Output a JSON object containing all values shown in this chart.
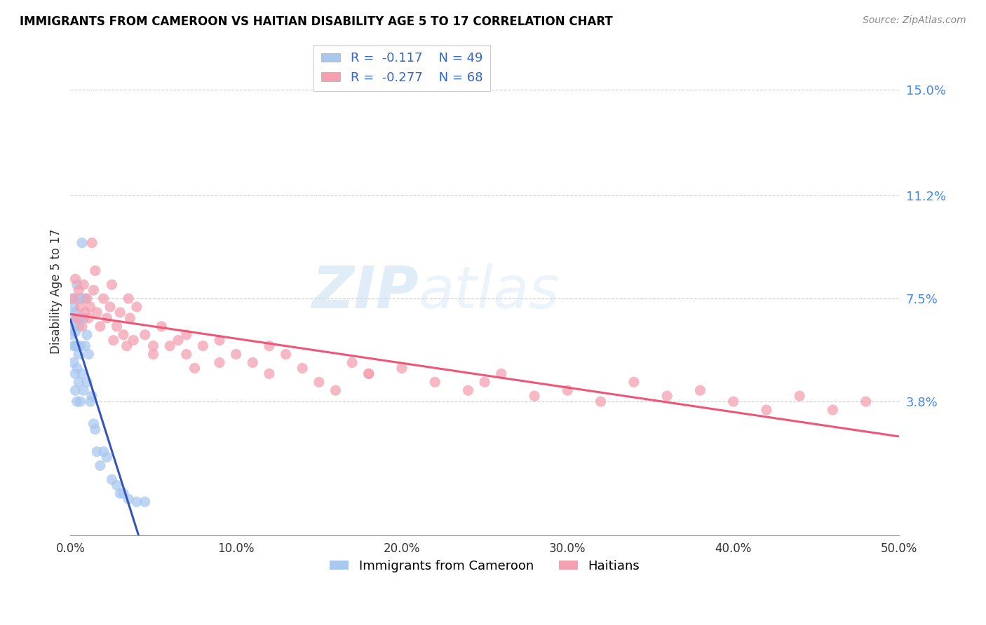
{
  "title": "IMMIGRANTS FROM CAMEROON VS HAITIAN DISABILITY AGE 5 TO 17 CORRELATION CHART",
  "source": "Source: ZipAtlas.com",
  "ylabel": "Disability Age 5 to 17",
  "xlim": [
    0.0,
    0.5
  ],
  "ylim": [
    -0.01,
    0.165
  ],
  "yticks": [
    0.038,
    0.075,
    0.112,
    0.15
  ],
  "ytick_labels": [
    "3.8%",
    "7.5%",
    "11.2%",
    "15.0%"
  ],
  "xticks": [
    0.0,
    0.1,
    0.2,
    0.3,
    0.4,
    0.5
  ],
  "xtick_labels": [
    "0.0%",
    "10.0%",
    "20.0%",
    "30.0%",
    "40.0%",
    "50.0%"
  ],
  "cameroon_color": "#a8c8f0",
  "haitian_color": "#f4a0b0",
  "cameroon_line_color": "#3355bb",
  "haitian_line_color": "#ee5577",
  "R_cameroon": -0.117,
  "N_cameroon": 49,
  "R_haitian": -0.277,
  "N_haitian": 68,
  "legend_label_1": "Immigrants from Cameroon",
  "legend_label_2": "Haitians",
  "watermark_zip": "ZIP",
  "watermark_atlas": "atlas",
  "cameroon_x": [
    0.001,
    0.001,
    0.001,
    0.002,
    0.002,
    0.002,
    0.002,
    0.003,
    0.003,
    0.003,
    0.003,
    0.003,
    0.004,
    0.004,
    0.004,
    0.004,
    0.004,
    0.005,
    0.005,
    0.005,
    0.005,
    0.006,
    0.006,
    0.006,
    0.007,
    0.007,
    0.007,
    0.008,
    0.008,
    0.009,
    0.009,
    0.01,
    0.01,
    0.011,
    0.012,
    0.013,
    0.014,
    0.015,
    0.016,
    0.018,
    0.02,
    0.022,
    0.025,
    0.028,
    0.03,
    0.032,
    0.035,
    0.04,
    0.045
  ],
  "cameroon_y": [
    0.075,
    0.068,
    0.062,
    0.072,
    0.065,
    0.058,
    0.052,
    0.07,
    0.063,
    0.058,
    0.048,
    0.042,
    0.08,
    0.068,
    0.058,
    0.05,
    0.038,
    0.075,
    0.065,
    0.055,
    0.045,
    0.068,
    0.058,
    0.038,
    0.095,
    0.075,
    0.048,
    0.068,
    0.042,
    0.075,
    0.058,
    0.062,
    0.045,
    0.055,
    0.038,
    0.04,
    0.03,
    0.028,
    0.02,
    0.015,
    0.02,
    0.018,
    0.01,
    0.008,
    0.005,
    0.005,
    0.003,
    0.002,
    0.002
  ],
  "haitian_x": [
    0.002,
    0.003,
    0.004,
    0.005,
    0.006,
    0.007,
    0.008,
    0.009,
    0.01,
    0.011,
    0.012,
    0.013,
    0.014,
    0.015,
    0.016,
    0.018,
    0.02,
    0.022,
    0.024,
    0.026,
    0.028,
    0.03,
    0.032,
    0.034,
    0.036,
    0.038,
    0.04,
    0.045,
    0.05,
    0.055,
    0.06,
    0.065,
    0.07,
    0.075,
    0.08,
    0.09,
    0.1,
    0.11,
    0.12,
    0.13,
    0.14,
    0.15,
    0.16,
    0.17,
    0.18,
    0.2,
    0.22,
    0.24,
    0.26,
    0.28,
    0.3,
    0.32,
    0.34,
    0.36,
    0.38,
    0.4,
    0.42,
    0.44,
    0.46,
    0.48,
    0.035,
    0.025,
    0.05,
    0.07,
    0.09,
    0.12,
    0.18,
    0.25
  ],
  "haitian_y": [
    0.075,
    0.082,
    0.068,
    0.078,
    0.072,
    0.065,
    0.08,
    0.07,
    0.075,
    0.068,
    0.072,
    0.095,
    0.078,
    0.085,
    0.07,
    0.065,
    0.075,
    0.068,
    0.072,
    0.06,
    0.065,
    0.07,
    0.062,
    0.058,
    0.068,
    0.06,
    0.072,
    0.062,
    0.055,
    0.065,
    0.058,
    0.06,
    0.055,
    0.05,
    0.058,
    0.06,
    0.055,
    0.052,
    0.048,
    0.055,
    0.05,
    0.045,
    0.042,
    0.052,
    0.048,
    0.05,
    0.045,
    0.042,
    0.048,
    0.04,
    0.042,
    0.038,
    0.045,
    0.04,
    0.042,
    0.038,
    0.035,
    0.04,
    0.035,
    0.038,
    0.075,
    0.08,
    0.058,
    0.062,
    0.052,
    0.058,
    0.048,
    0.045
  ]
}
